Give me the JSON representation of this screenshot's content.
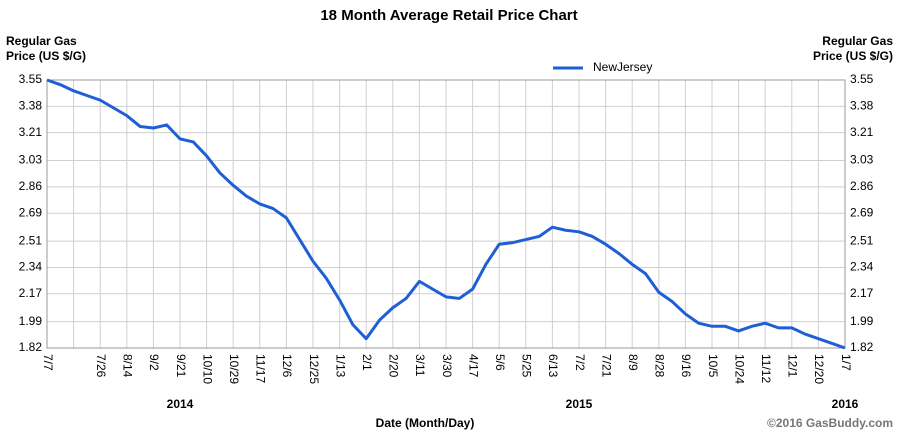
{
  "chart_data": {
    "type": "line",
    "title": "18 Month Average Retail Price Chart",
    "y_label": [
      "Regular Gas",
      "Price (US $/G)"
    ],
    "x_label": "Date (Month/Day)",
    "credit": "©2016 GasBuddy.com",
    "years": [
      {
        "text": "2014",
        "at": "9/21"
      },
      {
        "text": "2015",
        "at": "7/2"
      },
      {
        "text": "2016",
        "at": "1/7"
      }
    ],
    "categories": [
      "7/7",
      null,
      null,
      null,
      "7/26",
      null,
      "8/14",
      null,
      "9/2",
      null,
      "9/21",
      null,
      "10/10",
      null,
      "10/29",
      null,
      "11/17",
      null,
      "12/6",
      null,
      "12/25",
      null,
      "1/13",
      null,
      "2/1",
      null,
      "2/20",
      null,
      "3/11",
      null,
      "3/30",
      null,
      "4/17",
      null,
      "5/6",
      null,
      "5/25",
      null,
      "6/13",
      null,
      "7/2",
      null,
      "7/21",
      null,
      "8/9",
      null,
      "8/28",
      null,
      "9/16",
      null,
      "10/5",
      null,
      "10/24",
      null,
      "11/12",
      null,
      "12/1",
      null,
      "12/20",
      null,
      "1/7"
    ],
    "series": [
      {
        "name": "NewJersey",
        "color": "#1f5fd6",
        "values": [
          3.55,
          3.52,
          3.48,
          3.45,
          3.42,
          3.37,
          3.32,
          3.25,
          3.24,
          3.26,
          3.17,
          3.15,
          3.06,
          2.95,
          2.87,
          2.8,
          2.75,
          2.72,
          2.66,
          2.52,
          2.38,
          2.27,
          2.13,
          1.97,
          1.88,
          2.0,
          2.08,
          2.14,
          2.25,
          2.2,
          2.15,
          2.14,
          2.2,
          2.36,
          2.49,
          2.5,
          2.52,
          2.54,
          2.6,
          2.58,
          2.57,
          2.54,
          2.49,
          2.43,
          2.36,
          2.3,
          2.18,
          2.12,
          2.04,
          1.98,
          1.96,
          1.96,
          1.93,
          1.96,
          1.98,
          1.95,
          1.95,
          1.91,
          1.88,
          1.85,
          1.82
        ]
      }
    ],
    "ylim": [
      1.82,
      3.55
    ],
    "yticks": [
      1.82,
      1.99,
      2.17,
      2.34,
      2.51,
      2.69,
      2.86,
      3.03,
      3.21,
      3.38,
      3.55
    ],
    "grid": true
  }
}
